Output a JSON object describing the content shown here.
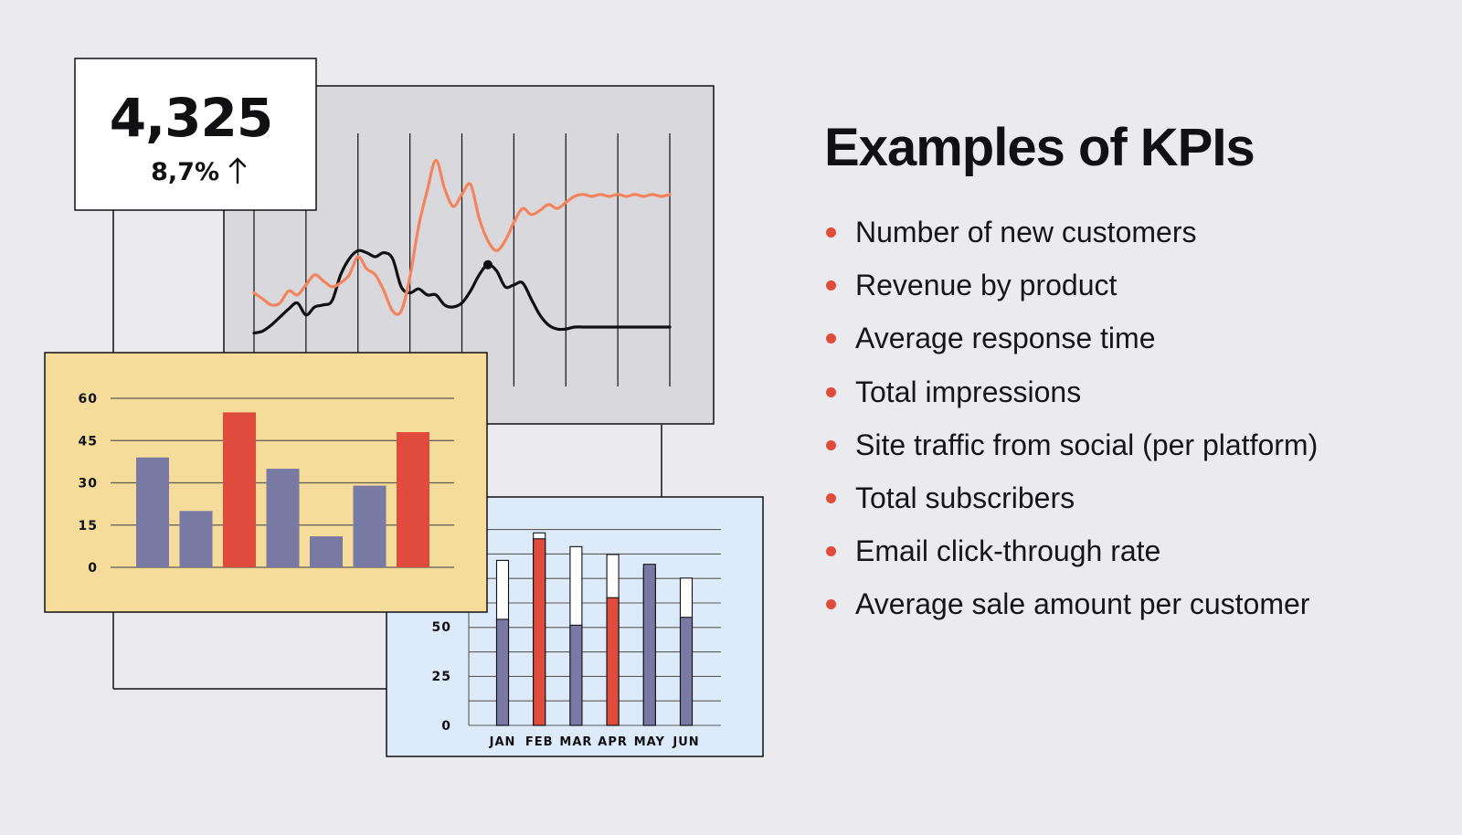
{
  "colors": {
    "background": "#ebeaef",
    "accent_red": "#df4b3d",
    "bar_purple": "#797aa3",
    "line_orange": "#f4845d",
    "line_black": "#111114",
    "yellow_panel": "#f6dc9a",
    "blue_panel": "#dceafa",
    "gray_panel": "#d8d8dd"
  },
  "metric_card": {
    "value": "4,325",
    "change": "8,7%",
    "arrow_icon": "arrow-up-icon"
  },
  "heading": "Examples of KPIs",
  "kpi_items": [
    "Number of new customers",
    "Revenue by product",
    "Average response time",
    "Total impressions",
    "Site traffic from social (per platform)",
    "Total subscribers",
    "Email click-through rate",
    "Average sale amount per customer"
  ],
  "chart_data": [
    {
      "type": "line",
      "title": "",
      "x": [
        0,
        1,
        2,
        3,
        4,
        5,
        6,
        7,
        8,
        9,
        10,
        11,
        12,
        13,
        14,
        15,
        16,
        17,
        18,
        19,
        20,
        21,
        22,
        23,
        24,
        25,
        26,
        27,
        28,
        29,
        30,
        31,
        32,
        33,
        34,
        35,
        36,
        37,
        38,
        39,
        40,
        41,
        42,
        43,
        44,
        45,
        46,
        47,
        48
      ],
      "series": [
        {
          "color": "#111114",
          "values": [
            7,
            8,
            11,
            15,
            19,
            22,
            16,
            20,
            21,
            23,
            36,
            44,
            48,
            47,
            45,
            47,
            44,
            30,
            27,
            29,
            26,
            26,
            21,
            20,
            22,
            28,
            36,
            41,
            38,
            30,
            31,
            32,
            24,
            16,
            11,
            9,
            9,
            10,
            10,
            10,
            10,
            10,
            10,
            10,
            10,
            10,
            10,
            10,
            10
          ]
        },
        {
          "color": "#f4845d",
          "values": [
            27,
            24,
            21,
            22,
            28,
            26,
            31,
            36,
            33,
            30,
            32,
            36,
            45,
            39,
            36,
            28,
            18,
            18,
            35,
            60,
            78,
            93,
            79,
            70,
            76,
            81,
            64,
            53,
            48,
            53,
            62,
            69,
            66,
            68,
            71,
            69,
            72,
            75,
            76,
            75,
            76,
            75,
            76,
            75,
            76,
            75,
            76,
            75,
            76
          ]
        }
      ],
      "grid": "vertical"
    },
    {
      "type": "bar",
      "title": "",
      "categories": [
        "",
        "",
        "",
        "",
        "",
        "",
        ""
      ],
      "values": [
        39,
        20,
        55,
        35,
        11,
        29,
        48
      ],
      "highlight": [
        false,
        false,
        true,
        false,
        false,
        false,
        true
      ],
      "yticks": [
        "60",
        "45",
        "30",
        "15",
        "0"
      ],
      "ylim": [
        0,
        60
      ],
      "grid": "horizontal"
    },
    {
      "type": "bar",
      "title": "",
      "categories": [
        "JAN",
        "FEB",
        "MAR",
        "APR",
        "MAY",
        "JUN"
      ],
      "values": [
        54,
        95,
        51,
        65,
        82,
        55
      ],
      "totals": [
        84,
        98,
        91,
        87,
        80,
        75
      ],
      "highlight": [
        false,
        true,
        false,
        true,
        false,
        false
      ],
      "yticks": [
        "50",
        "25",
        "0"
      ],
      "ylim": [
        0,
        100
      ],
      "grid": "horizontal"
    }
  ]
}
